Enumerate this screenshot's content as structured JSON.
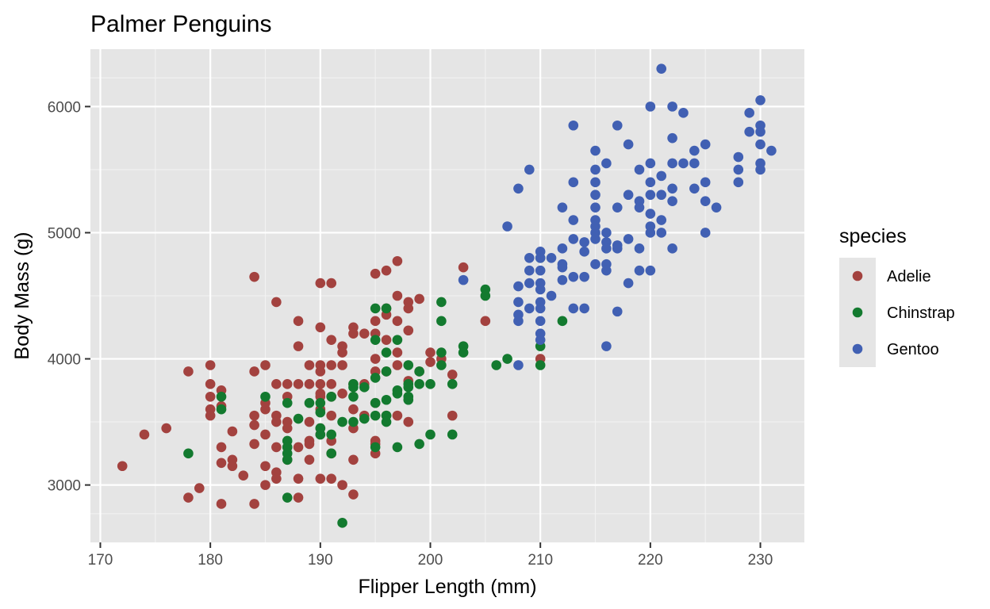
{
  "chart_data": {
    "type": "scatter",
    "title": "Palmer Penguins",
    "xlabel": "Flipper Length (mm)",
    "ylabel": "Body Mass (g)",
    "xlim": [
      169.1,
      234.0
    ],
    "ylim": [
      2545,
      6455
    ],
    "x_ticks": [
      170,
      180,
      190,
      200,
      210,
      220,
      230
    ],
    "y_ticks": [
      3000,
      4000,
      5000,
      6000
    ],
    "grid": true,
    "legend": {
      "title": "species",
      "position": "right"
    },
    "series": [
      {
        "name": "Adelie",
        "color": "#a3423f",
        "points": [
          [
            172,
            3150
          ],
          [
            174,
            3400
          ],
          [
            176,
            3450
          ],
          [
            178,
            3900
          ],
          [
            178,
            2900
          ],
          [
            179,
            2975
          ],
          [
            180,
            3950
          ],
          [
            180,
            3800
          ],
          [
            180,
            3700
          ],
          [
            180,
            3600
          ],
          [
            180,
            3550
          ],
          [
            181,
            3750
          ],
          [
            181,
            3625
          ],
          [
            181,
            3300
          ],
          [
            181,
            3175
          ],
          [
            181,
            2850
          ],
          [
            182,
            3425
          ],
          [
            182,
            3200
          ],
          [
            182,
            3150
          ],
          [
            183,
            3075
          ],
          [
            184,
            4650
          ],
          [
            184,
            3900
          ],
          [
            184,
            3550
          ],
          [
            184,
            3475
          ],
          [
            184,
            3325
          ],
          [
            184,
            2850
          ],
          [
            185,
            3950
          ],
          [
            185,
            3650
          ],
          [
            185,
            3600
          ],
          [
            185,
            3400
          ],
          [
            185,
            3150
          ],
          [
            185,
            3000
          ],
          [
            186,
            4450
          ],
          [
            186,
            3800
          ],
          [
            186,
            3550
          ],
          [
            186,
            3500
          ],
          [
            186,
            3300
          ],
          [
            186,
            3100
          ],
          [
            186,
            3050
          ],
          [
            187,
            3800
          ],
          [
            187,
            3700
          ],
          [
            187,
            3500
          ],
          [
            187,
            3450
          ],
          [
            187,
            3300
          ],
          [
            187,
            3200
          ],
          [
            188,
            4300
          ],
          [
            188,
            4100
          ],
          [
            188,
            3800
          ],
          [
            188,
            3300
          ],
          [
            188,
            3050
          ],
          [
            188,
            2900
          ],
          [
            189,
            3950
          ],
          [
            189,
            3800
          ],
          [
            189,
            3500
          ],
          [
            189,
            3350
          ],
          [
            189,
            3325
          ],
          [
            189,
            3200
          ],
          [
            190,
            4600
          ],
          [
            190,
            4250
          ],
          [
            190,
            3950
          ],
          [
            190,
            3900
          ],
          [
            190,
            3800
          ],
          [
            190,
            3725
          ],
          [
            190,
            3700
          ],
          [
            190,
            3600
          ],
          [
            190,
            3450
          ],
          [
            190,
            3400
          ],
          [
            190,
            3050
          ],
          [
            191,
            4600
          ],
          [
            191,
            4150
          ],
          [
            191,
            3950
          ],
          [
            191,
            3800
          ],
          [
            191,
            3700
          ],
          [
            191,
            3550
          ],
          [
            191,
            3350
          ],
          [
            191,
            3250
          ],
          [
            191,
            3050
          ],
          [
            192,
            4100
          ],
          [
            192,
            4050
          ],
          [
            192,
            3950
          ],
          [
            192,
            3725
          ],
          [
            192,
            3000
          ],
          [
            193,
            4250
          ],
          [
            193,
            4200
          ],
          [
            193,
            3800
          ],
          [
            193,
            3600
          ],
          [
            193,
            3450
          ],
          [
            193,
            3200
          ],
          [
            193,
            2925
          ],
          [
            194,
            4200
          ],
          [
            194,
            3800
          ],
          [
            194,
            3550
          ],
          [
            195,
            4675
          ],
          [
            195,
            4300
          ],
          [
            195,
            4200
          ],
          [
            195,
            4000
          ],
          [
            195,
            3900
          ],
          [
            195,
            3650
          ],
          [
            195,
            3350
          ],
          [
            195,
            3325
          ],
          [
            195,
            3250
          ],
          [
            196,
            4700
          ],
          [
            196,
            4400
          ],
          [
            196,
            4350
          ],
          [
            196,
            4150
          ],
          [
            196,
            3900
          ],
          [
            196,
            3550
          ],
          [
            197,
            4775
          ],
          [
            197,
            4500
          ],
          [
            197,
            4300
          ],
          [
            197,
            4050
          ],
          [
            197,
            3950
          ],
          [
            197,
            3550
          ],
          [
            198,
            4450
          ],
          [
            198,
            4400
          ],
          [
            198,
            4225
          ],
          [
            198,
            3825
          ],
          [
            198,
            3500
          ],
          [
            199,
            4475
          ],
          [
            199,
            3900
          ],
          [
            200,
            4050
          ],
          [
            200,
            3975
          ],
          [
            201,
            4000
          ],
          [
            202,
            3875
          ],
          [
            202,
            3550
          ],
          [
            203,
            4725
          ],
          [
            205,
            4300
          ],
          [
            210,
            4000
          ]
        ]
      },
      {
        "name": "Chinstrap",
        "color": "#137a2f",
        "points": [
          [
            178,
            3250
          ],
          [
            181,
            3700
          ],
          [
            181,
            3600
          ],
          [
            185,
            3700
          ],
          [
            187,
            3650
          ],
          [
            187,
            3350
          ],
          [
            187,
            3300
          ],
          [
            187,
            3250
          ],
          [
            187,
            3200
          ],
          [
            187,
            2900
          ],
          [
            188,
            3525
          ],
          [
            189,
            3650
          ],
          [
            190,
            3650
          ],
          [
            190,
            3575
          ],
          [
            190,
            3450
          ],
          [
            190,
            3400
          ],
          [
            191,
            3700
          ],
          [
            191,
            3400
          ],
          [
            191,
            3250
          ],
          [
            192,
            3500
          ],
          [
            192,
            2700
          ],
          [
            193,
            3800
          ],
          [
            193,
            3775
          ],
          [
            193,
            3700
          ],
          [
            193,
            3500
          ],
          [
            194,
            3775
          ],
          [
            194,
            3525
          ],
          [
            195,
            4400
          ],
          [
            195,
            4150
          ],
          [
            195,
            3850
          ],
          [
            195,
            3650
          ],
          [
            195,
            3550
          ],
          [
            195,
            3300
          ],
          [
            196,
            4400
          ],
          [
            196,
            4050
          ],
          [
            196,
            3900
          ],
          [
            196,
            3675
          ],
          [
            196,
            3550
          ],
          [
            196,
            3500
          ],
          [
            197,
            4150
          ],
          [
            197,
            3750
          ],
          [
            197,
            3725
          ],
          [
            197,
            3300
          ],
          [
            198,
            3950
          ],
          [
            198,
            3800
          ],
          [
            198,
            3775
          ],
          [
            198,
            3700
          ],
          [
            198,
            3675
          ],
          [
            199,
            3900
          ],
          [
            199,
            3800
          ],
          [
            199,
            3325
          ],
          [
            200,
            3800
          ],
          [
            200,
            3400
          ],
          [
            201,
            4450
          ],
          [
            201,
            4300
          ],
          [
            201,
            4050
          ],
          [
            201,
            3950
          ],
          [
            202,
            3800
          ],
          [
            202,
            3400
          ],
          [
            203,
            4100
          ],
          [
            203,
            4050
          ],
          [
            205,
            4550
          ],
          [
            205,
            4500
          ],
          [
            206,
            3950
          ],
          [
            207,
            4000
          ],
          [
            210,
            4800
          ],
          [
            210,
            4100
          ],
          [
            210,
            3950
          ],
          [
            212,
            4300
          ]
        ]
      },
      {
        "name": "Gentoo",
        "color": "#4160b3",
        "points": [
          [
            203,
            4625
          ],
          [
            207,
            5050
          ],
          [
            208,
            5350
          ],
          [
            208,
            4575
          ],
          [
            208,
            4450
          ],
          [
            208,
            4350
          ],
          [
            208,
            4300
          ],
          [
            208,
            3950
          ],
          [
            209,
            5500
          ],
          [
            209,
            4800
          ],
          [
            209,
            4700
          ],
          [
            209,
            4600
          ],
          [
            209,
            4400
          ],
          [
            210,
            4850
          ],
          [
            210,
            4800
          ],
          [
            210,
            4700
          ],
          [
            210,
            4600
          ],
          [
            210,
            4550
          ],
          [
            210,
            4450
          ],
          [
            210,
            4400
          ],
          [
            210,
            4300
          ],
          [
            210,
            4200
          ],
          [
            210,
            4150
          ],
          [
            211,
            4800
          ],
          [
            211,
            4500
          ],
          [
            212,
            5200
          ],
          [
            212,
            4875
          ],
          [
            212,
            4750
          ],
          [
            212,
            4725
          ],
          [
            212,
            4625
          ],
          [
            213,
            5850
          ],
          [
            213,
            5400
          ],
          [
            213,
            5100
          ],
          [
            213,
            4950
          ],
          [
            213,
            4650
          ],
          [
            213,
            4400
          ],
          [
            214,
            4925
          ],
          [
            214,
            4850
          ],
          [
            214,
            4650
          ],
          [
            214,
            4400
          ],
          [
            215,
            5650
          ],
          [
            215,
            5500
          ],
          [
            215,
            5400
          ],
          [
            215,
            5300
          ],
          [
            215,
            5200
          ],
          [
            215,
            5100
          ],
          [
            215,
            5050
          ],
          [
            215,
            5000
          ],
          [
            215,
            4950
          ],
          [
            215,
            4750
          ],
          [
            216,
            5550
          ],
          [
            216,
            5000
          ],
          [
            216,
            4925
          ],
          [
            216,
            4875
          ],
          [
            216,
            4750
          ],
          [
            216,
            4700
          ],
          [
            216,
            4100
          ],
          [
            217,
            5850
          ],
          [
            217,
            5200
          ],
          [
            217,
            4900
          ],
          [
            217,
            4875
          ],
          [
            217,
            4375
          ],
          [
            218,
            5700
          ],
          [
            218,
            5300
          ],
          [
            218,
            4950
          ],
          [
            218,
            4600
          ],
          [
            219,
            5500
          ],
          [
            219,
            5250
          ],
          [
            219,
            5200
          ],
          [
            219,
            4875
          ],
          [
            219,
            4700
          ],
          [
            220,
            6000
          ],
          [
            220,
            5550
          ],
          [
            220,
            5400
          ],
          [
            220,
            5300
          ],
          [
            220,
            5150
          ],
          [
            220,
            5050
          ],
          [
            220,
            5000
          ],
          [
            220,
            4700
          ],
          [
            221,
            6300
          ],
          [
            221,
            5450
          ],
          [
            221,
            5300
          ],
          [
            221,
            5100
          ],
          [
            221,
            5000
          ],
          [
            222,
            6000
          ],
          [
            222,
            5750
          ],
          [
            222,
            5550
          ],
          [
            222,
            5350
          ],
          [
            222,
            5250
          ],
          [
            222,
            4875
          ],
          [
            223,
            5950
          ],
          [
            223,
            5550
          ],
          [
            224,
            5650
          ],
          [
            224,
            5550
          ],
          [
            224,
            5350
          ],
          [
            225,
            5700
          ],
          [
            225,
            5400
          ],
          [
            225,
            5250
          ],
          [
            225,
            5000
          ],
          [
            226,
            5200
          ],
          [
            228,
            5600
          ],
          [
            228,
            5500
          ],
          [
            228,
            5400
          ],
          [
            229,
            5950
          ],
          [
            229,
            5800
          ],
          [
            230,
            6050
          ],
          [
            230,
            5850
          ],
          [
            230,
            5800
          ],
          [
            230,
            5700
          ],
          [
            230,
            5550
          ],
          [
            230,
            5500
          ],
          [
            231,
            5650
          ]
        ]
      }
    ]
  }
}
